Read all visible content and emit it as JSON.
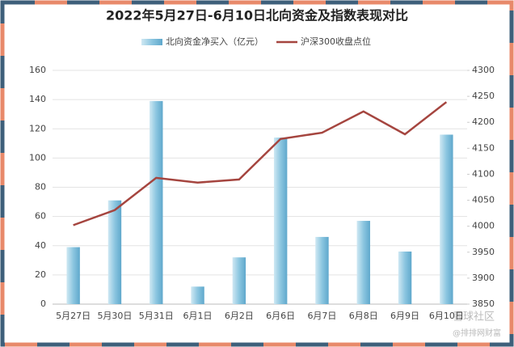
{
  "chart_data": {
    "type": "bar",
    "title": "2022年5月27日-6月10日北向资金及指数表现对比",
    "categories": [
      "5月27日",
      "5月30日",
      "5月31日",
      "6月1日",
      "6月2日",
      "6月6日",
      "6月7日",
      "6月8日",
      "6月9日",
      "6月10日"
    ],
    "series": [
      {
        "name": "北向资金净买入（亿元）",
        "type": "bar",
        "axis": "y",
        "color": "#7fbfdc",
        "values": [
          39,
          71,
          139,
          12,
          32,
          114,
          46,
          57,
          36,
          116
        ]
      },
      {
        "name": "沪深300收盘点位",
        "type": "line",
        "axis": "y2",
        "color": "#a5453f",
        "values": [
          4002,
          4031,
          4093,
          4084,
          4090,
          4168,
          4180,
          4221,
          4177,
          4239
        ]
      }
    ],
    "ylim": [
      0,
      160
    ],
    "yticks": [
      0,
      20,
      40,
      60,
      80,
      100,
      120,
      140,
      160
    ],
    "y2lim": [
      3850,
      4300
    ],
    "y2ticks": [
      3850,
      3900,
      3950,
      4000,
      4050,
      4100,
      4150,
      4200,
      4250,
      4300
    ],
    "grid": true,
    "legend": "top",
    "watermark": [
      "雪球社区",
      "@排排网财富"
    ]
  }
}
